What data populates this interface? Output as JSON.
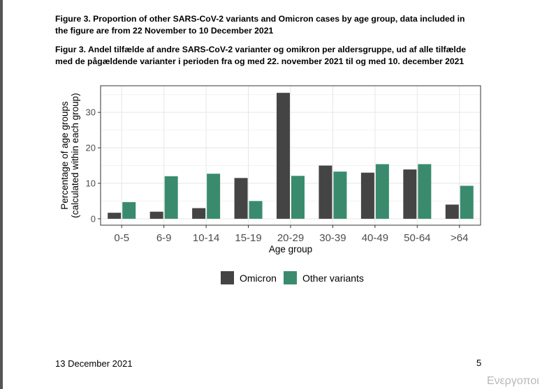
{
  "captions": {
    "english": "Figure 3. Proportion of other SARS-CoV-2 variants and Omicron cases by age group, data included in the figure are from 22 November to 10 December 2021",
    "danish": "Figur 3.  Andel tilfælde af andre SARS-CoV-2 varianter og omikron per aldersgruppe, ud af alle tilfælde med de pågældende varianter i perioden fra og med 22. november 2021 til og med 10. december 2021"
  },
  "footer": {
    "date": "13 December 2021",
    "page_number": "5"
  },
  "watermark": "Ενεργοποι",
  "colors": {
    "omicron": "#444444",
    "other_variants": "#3a8b6e",
    "panel_border": "#333333",
    "grid": "#e6e6e6"
  },
  "chart_data": {
    "type": "bar",
    "xlabel": "Age group",
    "ylabel_lines": [
      "Percentage of age groups",
      "(calculated within each group)"
    ],
    "categories": [
      "0-5",
      "6-9",
      "10-14",
      "15-19",
      "20-29",
      "30-39",
      "40-49",
      "50-64",
      ">64"
    ],
    "series": [
      {
        "name": "Omicron",
        "color": "#444444",
        "values": [
          1.7,
          2.0,
          3.0,
          11.5,
          35.5,
          15.0,
          13.0,
          13.9,
          4.0
        ]
      },
      {
        "name": "Other variants",
        "color": "#3a8b6e",
        "values": [
          4.7,
          12.0,
          12.7,
          5.0,
          12.1,
          13.3,
          15.4,
          15.4,
          9.3
        ]
      }
    ],
    "ylim": [
      -1.8,
      37.5
    ],
    "yticks": [
      0,
      10,
      20,
      30
    ],
    "grid": true,
    "legend_position": "bottom"
  }
}
